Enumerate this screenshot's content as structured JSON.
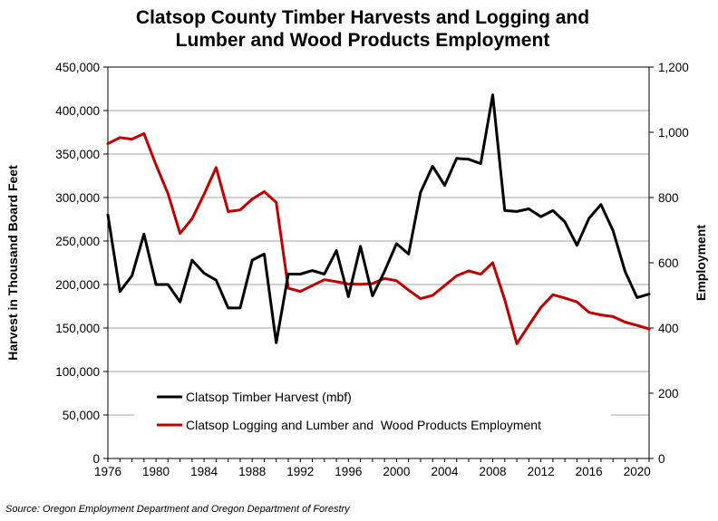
{
  "chart_data": {
    "type": "line",
    "title_lines": [
      "Clatsop County Timber Harvests and Logging and",
      "Lumber and Wood Products Employment"
    ],
    "ylabel": "Harvest in Thousand Board Feet",
    "y2label": "Employment",
    "source": "Source: Oregon Employment Department and Oregon Department of Forestry",
    "xlim": [
      1976,
      2021
    ],
    "ylim": [
      0,
      450000
    ],
    "y2lim": [
      0,
      1200
    ],
    "grid": "horizontal",
    "legend_position": "bottom-left",
    "x_ticks": [
      "1976",
      "1980",
      "1984",
      "1988",
      "1992",
      "1996",
      "2000",
      "2004",
      "2008",
      "2012",
      "2016",
      "2020"
    ],
    "y_ticks": [
      "0",
      "50,000",
      "100,000",
      "150,000",
      "200,000",
      "250,000",
      "300,000",
      "350,000",
      "400,000",
      "450,000"
    ],
    "y2_ticks": [
      "0",
      "200",
      "400",
      "600",
      "800",
      "1,000",
      "1,200"
    ],
    "x": [
      1976,
      1977,
      1978,
      1979,
      1980,
      1981,
      1982,
      1983,
      1984,
      1985,
      1986,
      1987,
      1988,
      1989,
      1990,
      1991,
      1992,
      1993,
      1994,
      1995,
      1996,
      1997,
      1998,
      1999,
      2000,
      2001,
      2002,
      2003,
      2004,
      2005,
      2006,
      2007,
      2008,
      2009,
      2010,
      2011,
      2012,
      2013,
      2014,
      2015,
      2016,
      2017,
      2018,
      2019,
      2020,
      2021
    ],
    "series": [
      {
        "name": "Clatsop Timber Harvest (mbf)",
        "axis": "left",
        "color": "#000000",
        "values": [
          280000,
          192000,
          210000,
          258000,
          200000,
          200000,
          180000,
          228000,
          213000,
          205000,
          173000,
          173000,
          228000,
          235000,
          133000,
          212000,
          212000,
          216000,
          212000,
          239000,
          186000,
          244000,
          187000,
          215000,
          247000,
          235000,
          306000,
          336000,
          314000,
          345000,
          344000,
          339000,
          418000,
          285000,
          284000,
          287000,
          278000,
          285000,
          272000,
          245000,
          276000,
          292000,
          262000,
          215000,
          185000,
          189000
        ]
      },
      {
        "name": "Clatsop Logging and Lumber and  Wood Products Employment",
        "axis": "right",
        "color": "#c00000",
        "values": [
          965,
          984,
          979,
          996,
          900,
          812,
          690,
          735,
          810,
          892,
          757,
          762,
          795,
          818,
          785,
          522,
          512,
          530,
          548,
          542,
          535,
          534,
          536,
          552,
          545,
          516,
          490,
          500,
          530,
          560,
          575,
          565,
          600,
          486,
          352,
          408,
          463,
          502,
          492,
          480,
          448,
          440,
          435,
          418,
          408,
          397
        ]
      }
    ]
  }
}
